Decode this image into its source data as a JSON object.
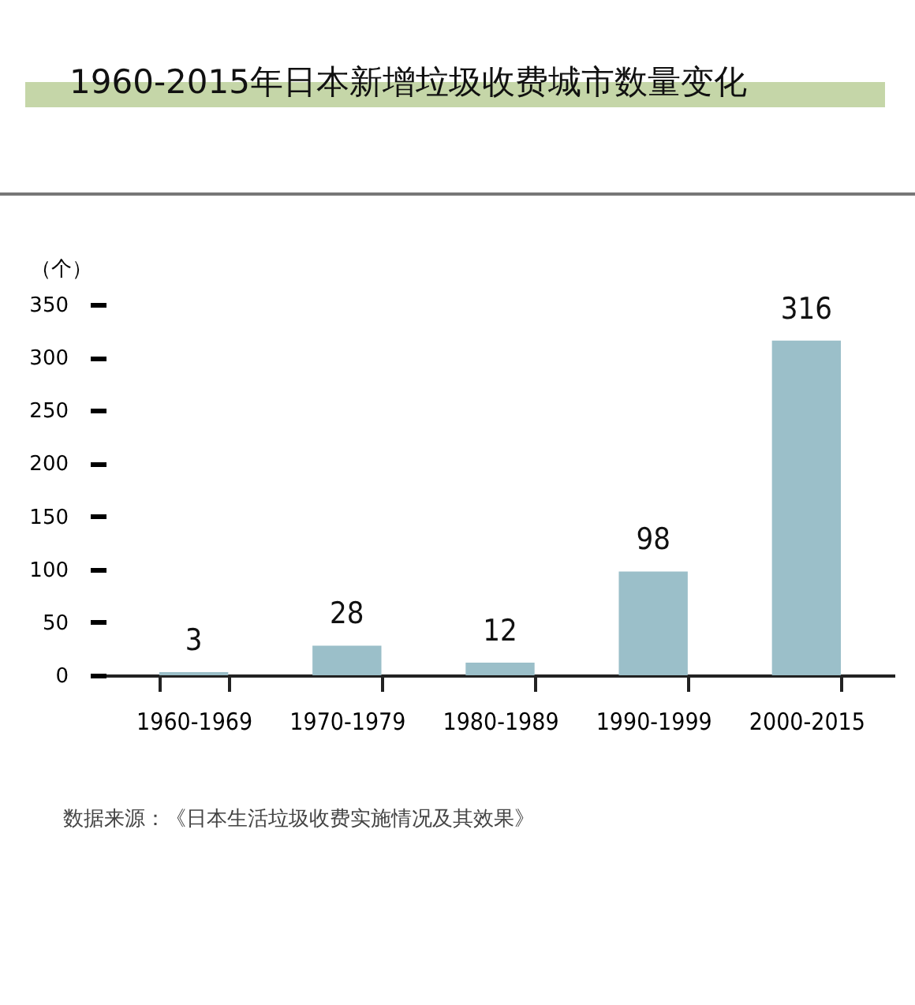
{
  "chart_data": {
    "type": "bar",
    "title": "1960-2015年日本新增垃圾收费城市数量变化",
    "ylabel": "（个）",
    "categories": [
      "1960-1969",
      "1970-1979",
      "1980-1989",
      "1990-1999",
      "2000-2015"
    ],
    "values": [
      3,
      28,
      12,
      98,
      316
    ],
    "color": "#9bbfc9",
    "ylim": [
      0,
      350
    ],
    "yticks": [
      0,
      50,
      100,
      150,
      200,
      250,
      300,
      350
    ],
    "data_labels": true,
    "grid": false,
    "annotations": [
      "数据来源：《日本生活垃圾收费实施情况及其效果》"
    ]
  }
}
